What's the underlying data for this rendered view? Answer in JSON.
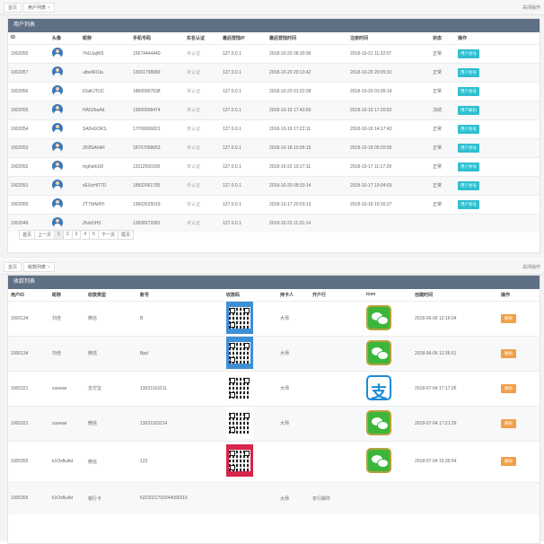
{
  "top_frame": {
    "tabs": [
      {
        "label": "首页"
      },
      {
        "label": "用户列表"
      }
    ],
    "close_ops": "关闭操作",
    "panel_title": "用户列表",
    "columns": [
      "ID",
      "头像",
      "昵称",
      "手机号码",
      "实名认证",
      "最后登陆IP",
      "最后登陆时间",
      "注册时间",
      "状态",
      "操作"
    ],
    "rows": [
      {
        "id": "1002050",
        "nick": "YkUJajW3",
        "phone": "15674444440",
        "auth": "未认证",
        "ip": "127.0.0.1",
        "last": "2018-10-23 06:30:36",
        "reg": "2018-10-21 11:22:07",
        "status": "正常",
        "action": "用户封号"
      },
      {
        "id": "1002057",
        "nick": "utbeN01la",
        "phone": "13061798089",
        "auth": "未认证",
        "ip": "127.0.0.1",
        "last": "2018-10-20 20:13:42",
        "reg": "2018-10-20 20:09:31",
        "status": "正常",
        "action": "用户封号"
      },
      {
        "id": "1002056",
        "nick": "IOaKJTUC",
        "phone": "18600007638",
        "auth": "未认证",
        "ip": "127.0.0.1",
        "last": "2018-10-20 01:22:28",
        "reg": "2018-10-20 01:09:14",
        "status": "正常",
        "action": "用户封号"
      },
      {
        "id": "1002055",
        "nick": "HA5ZbaAd",
        "phone": "13600008474",
        "auth": "未认证",
        "ip": "127.0.0.1",
        "last": "2018-10-19 17:43:50",
        "reg": "2018-10-19 17:20:52",
        "status": "冻结",
        "action": "用户解封"
      },
      {
        "id": "1002054",
        "nick": "SA0xGOKS",
        "phone": "17700006821",
        "auth": "未认证",
        "ip": "127.0.0.1",
        "last": "2018-10-19 17:22:11",
        "reg": "2018-10-18 14:17:43",
        "status": "正常",
        "action": "用户封号"
      },
      {
        "id": "1002053",
        "nick": "ZK8SAhkR",
        "phone": "18767098653",
        "auth": "未认证",
        "ip": "127.0.0.1",
        "last": "2018-10-18 10:05:15",
        "reg": "2018-10-18 09:20:55",
        "status": "正常",
        "action": "用户封号"
      },
      {
        "id": "1002052",
        "nick": "mghstk1t9",
        "phone": "13112500109",
        "auth": "未认证",
        "ip": "127.0.0.1",
        "last": "2018-10-22 10:17:11",
        "reg": "2018-10-17 11:17:29",
        "status": "正常",
        "action": "用户封号"
      },
      {
        "id": "1002051",
        "nick": "xEUoHiT7D",
        "phone": "18502061785",
        "auth": "未认证",
        "ip": "127.0.0.1",
        "last": "2018-10-20 09:33:14",
        "reg": "2018-10-17 10:04:03",
        "status": "正常",
        "action": "用户封号"
      },
      {
        "id": "1002050",
        "nick": "ZT79rM4Yi",
        "phone": "13602625019",
        "auth": "未认证",
        "ip": "127.0.0.1",
        "last": "2018-10-17 20:03:13",
        "reg": "2018-10-16 10:16:27",
        "status": "正常",
        "action": "用户封号"
      },
      {
        "id": "1002049",
        "nick": "ZfvbOHS",
        "phone": "13508272081",
        "auth": "未认证",
        "ip": "127.0.0.1",
        "last": "2018-10-23 11:31:14",
        "reg": "",
        "status": "",
        "action": ""
      }
    ],
    "pager": [
      "首页",
      "上一页",
      "1",
      "2",
      "3",
      "4",
      "5",
      "下一页",
      "尾页"
    ]
  },
  "bottom_frame": {
    "tabs": [
      {
        "label": "首页"
      },
      {
        "label": "收款列表"
      }
    ],
    "close_ops": "关闭操作",
    "panel_title": "收款列表",
    "columns": [
      "用户ID",
      "昵称",
      "收款类型",
      "账号",
      "收款码",
      "持卡人",
      "开户行",
      "icon",
      "创建时间",
      "操作"
    ],
    "rows": [
      {
        "uid": "1000134",
        "nick": "刘佳",
        "type": "微信",
        "acct": "B",
        "holder": "大师",
        "bank": "",
        "icon": "wechat",
        "time": "2018-06-06 12:16:04",
        "action": "删除",
        "qr": "blue"
      },
      {
        "uid": "1000134",
        "nick": "刘佳",
        "type": "微信",
        "acct": "Bpd",
        "holder": "大师",
        "bank": "",
        "icon": "wechat",
        "time": "2018-06-06 12:36:51",
        "action": "删除",
        "qr": "blue"
      },
      {
        "uid": "1000321",
        "nick": "xueeae",
        "type": "支付宝",
        "acct": "13021163211",
        "holder": "大师",
        "bank": "",
        "icon": "alipay",
        "time": "2018-07-04 17:17:26",
        "action": "删除",
        "qr": "plain"
      },
      {
        "uid": "1000321",
        "nick": "xueeae",
        "type": "微信",
        "acct": "13021163214",
        "holder": "大师",
        "bank": "",
        "icon": "wechat",
        "time": "2018-07-04 17:21:29",
        "action": "删除",
        "qr": "plain"
      },
      {
        "uid": "1000355",
        "nick": "k1OsfluAd",
        "type": "微信",
        "acct": "123",
        "holder": "",
        "bank": "",
        "icon": "wechat",
        "time": "2018-07-04 15:35:54",
        "action": "删除",
        "qr": "red"
      },
      {
        "uid": "1000355",
        "nick": "k1OsfluAd",
        "type": "银行卡",
        "acct": "6222021702044090210",
        "holder": "大师",
        "bank": "农行邮件",
        "icon": "",
        "time": "",
        "action": "",
        "qr": ""
      }
    ]
  },
  "colors": {
    "header": "#5f7084",
    "teal": "#2ebfd0",
    "orange": "#f0a04a",
    "wechat": "#3bb63b",
    "alipay": "#1a8bd8"
  }
}
